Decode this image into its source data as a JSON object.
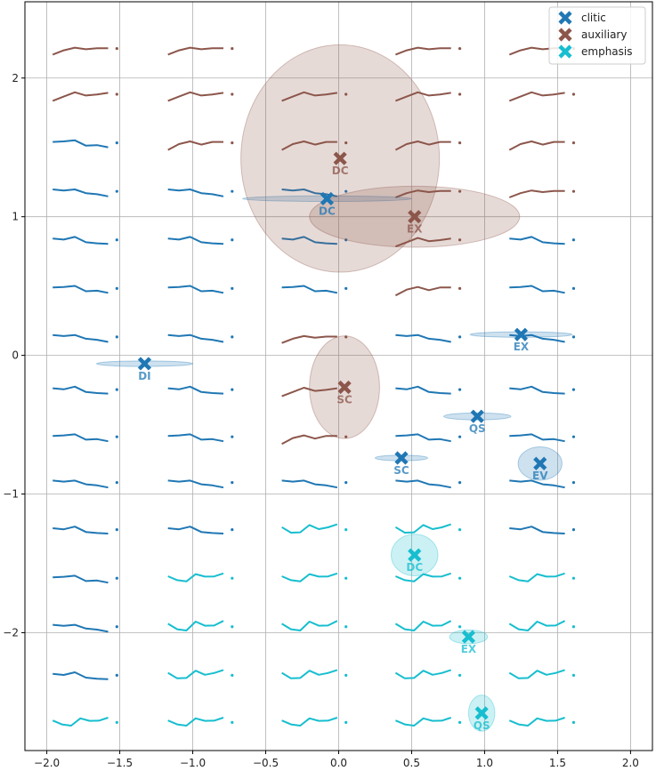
{
  "colors": {
    "clitic": "#1f77b4",
    "auxiliary": "#8c564b",
    "emphasis": "#17becf",
    "grid": "#b0b0b0"
  },
  "chart_data": {
    "type": "scatter",
    "title": "",
    "xlabel": "",
    "ylabel": "",
    "xlim": [
      -2.15,
      2.15
    ],
    "ylim": [
      -2.85,
      2.55
    ],
    "grid": true,
    "legend_position": "top-right",
    "xticks": [
      {
        "v": -2.0,
        "label": "−2.0"
      },
      {
        "v": -1.5,
        "label": "−1.5"
      },
      {
        "v": -1.0,
        "label": "−1.0"
      },
      {
        "v": -0.5,
        "label": "−0.5"
      },
      {
        "v": 0.0,
        "label": "0.0"
      },
      {
        "v": 0.5,
        "label": "0.5"
      },
      {
        "v": 1.0,
        "label": "1.0"
      },
      {
        "v": 1.5,
        "label": "1.5"
      },
      {
        "v": 2.0,
        "label": "2.0"
      }
    ],
    "yticks": [
      {
        "v": -2,
        "label": "−2"
      },
      {
        "v": -1,
        "label": "−1"
      },
      {
        "v": 0,
        "label": "0"
      },
      {
        "v": 1,
        "label": "1"
      },
      {
        "v": 2,
        "label": "2"
      }
    ],
    "series": [
      {
        "name": "clitic",
        "points": [
          {
            "label": "DC",
            "x": -0.08,
            "y": 1.13,
            "sx": 0.58,
            "sy": 0.02
          },
          {
            "label": "DI",
            "x": -1.33,
            "y": -0.06,
            "sx": 0.33,
            "sy": 0.02
          },
          {
            "label": "EX",
            "x": 1.25,
            "y": 0.15,
            "sx": 0.35,
            "sy": 0.02
          },
          {
            "label": "QS",
            "x": 0.95,
            "y": -0.44,
            "sx": 0.23,
            "sy": 0.025
          },
          {
            "label": "SC",
            "x": 0.43,
            "y": -0.74,
            "sx": 0.18,
            "sy": 0.02
          },
          {
            "label": "EV",
            "x": 1.38,
            "y": -0.78,
            "sx": 0.15,
            "sy": 0.12
          }
        ]
      },
      {
        "name": "auxiliary",
        "points": [
          {
            "label": "DC",
            "x": 0.01,
            "y": 1.42,
            "sx": 0.68,
            "sy": 0.82
          },
          {
            "label": "EX",
            "x": 0.52,
            "y": 1.0,
            "sx": 0.72,
            "sy": 0.22
          },
          {
            "label": "SC",
            "x": 0.04,
            "y": -0.23,
            "sx": 0.24,
            "sy": 0.37
          }
        ]
      },
      {
        "name": "emphasis",
        "points": [
          {
            "label": "DC",
            "x": 0.52,
            "y": -1.44,
            "sx": 0.16,
            "sy": 0.15
          },
          {
            "label": "EX",
            "x": 0.89,
            "y": -2.03,
            "sx": 0.13,
            "sy": 0.05
          },
          {
            "label": "QS",
            "x": 0.98,
            "y": -2.58,
            "sx": 0.09,
            "sy": 0.13
          }
        ]
      }
    ],
    "glyph_grid": {
      "columns_x": [
        -1.96,
        -1.17,
        -0.39,
        0.39,
        1.17
      ],
      "rows": [
        {
          "y": 2.2,
          "classes": [
            "auxiliary",
            "auxiliary",
            "none",
            "auxiliary",
            "auxiliary"
          ]
        },
        {
          "y": 1.87,
          "classes": [
            "auxiliary",
            "auxiliary",
            "auxiliary",
            "auxiliary",
            "auxiliary"
          ]
        },
        {
          "y": 1.52,
          "classes": [
            "clitic",
            "auxiliary",
            "auxiliary",
            "auxiliary",
            "auxiliary"
          ]
        },
        {
          "y": 1.17,
          "classes": [
            "clitic",
            "clitic",
            "clitic",
            "auxiliary",
            "auxiliary"
          ]
        },
        {
          "y": 0.82,
          "classes": [
            "clitic",
            "clitic",
            "clitic",
            "auxiliary",
            "clitic"
          ]
        },
        {
          "y": 0.47,
          "classes": [
            "clitic",
            "clitic",
            "clitic",
            "auxiliary",
            "clitic"
          ]
        },
        {
          "y": 0.12,
          "classes": [
            "clitic",
            "clitic",
            "auxiliary",
            "clitic",
            "clitic"
          ]
        },
        {
          "y": -0.26,
          "classes": [
            "clitic",
            "clitic",
            "auxiliary",
            "clitic",
            "clitic"
          ]
        },
        {
          "y": -0.6,
          "classes": [
            "clitic",
            "clitic",
            "auxiliary",
            "clitic",
            "clitic"
          ]
        },
        {
          "y": -0.93,
          "classes": [
            "clitic",
            "clitic",
            "clitic",
            "clitic",
            "clitic"
          ]
        },
        {
          "y": -1.27,
          "classes": [
            "clitic",
            "clitic",
            "emphasis",
            "emphasis",
            "clitic"
          ]
        },
        {
          "y": -1.62,
          "classes": [
            "clitic",
            "emphasis",
            "emphasis",
            "emphasis",
            "emphasis"
          ]
        },
        {
          "y": -1.97,
          "classes": [
            "clitic",
            "emphasis",
            "emphasis",
            "emphasis",
            "emphasis"
          ]
        },
        {
          "y": -2.32,
          "classes": [
            "clitic",
            "emphasis",
            "emphasis",
            "emphasis",
            "emphasis"
          ]
        },
        {
          "y": -2.66,
          "classes": [
            "emphasis",
            "emphasis",
            "emphasis",
            "emphasis",
            "emphasis"
          ]
        }
      ],
      "shape_aux": [
        0.95,
        0.5,
        0.2,
        0.45,
        0.3,
        0.25
      ],
      "shape_clitic": [
        0.2,
        0.25,
        0.1,
        0.55,
        0.6,
        0.75
      ],
      "shape_emph": [
        0.2,
        0.55,
        0.6,
        0.05,
        0.3,
        0.25,
        0.0
      ]
    }
  }
}
